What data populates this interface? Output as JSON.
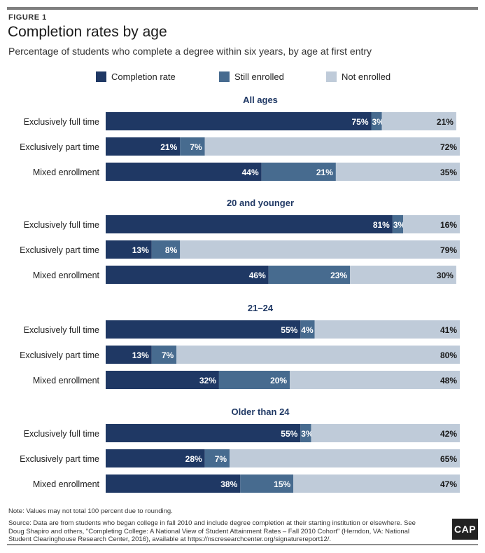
{
  "figure_label": "FIGURE 1",
  "colors": {
    "completion": "#1f3864",
    "still_enrolled": "#476b8f",
    "not_enrolled": "#bfcbd9",
    "heading": "#1f3864"
  },
  "legend": [
    {
      "label": "Completion rate",
      "color": "#1f3864"
    },
    {
      "label": "Still enrolled",
      "color": "#476b8f"
    },
    {
      "label": "Not enrolled",
      "color": "#bfcbd9"
    }
  ],
  "chart_data": {
    "type": "bar",
    "orientation": "horizontal",
    "stacked": true,
    "title": "Completion rates by age",
    "subtitle": "Percentage of students who complete a degree within six years, by age at first entry",
    "series_names": [
      "Completion rate",
      "Still enrolled",
      "Not enrolled"
    ],
    "groups": [
      {
        "title": "All ages",
        "rows": [
          {
            "label": "Exclusively full time",
            "values": [
              75,
              3,
              21
            ]
          },
          {
            "label": "Exclusively part time",
            "values": [
              21,
              7,
              72
            ]
          },
          {
            "label": "Mixed enrollment",
            "values": [
              44,
              21,
              35
            ]
          }
        ]
      },
      {
        "title": "20 and younger",
        "rows": [
          {
            "label": "Exclusively full time",
            "values": [
              81,
              3,
              16
            ]
          },
          {
            "label": "Exclusively part time",
            "values": [
              13,
              8,
              79
            ]
          },
          {
            "label": "Mixed enrollment",
            "values": [
              46,
              23,
              30
            ]
          }
        ]
      },
      {
        "title": "21–24",
        "rows": [
          {
            "label": "Exclusively full time",
            "values": [
              55,
              4,
              41
            ]
          },
          {
            "label": "Exclusively part time",
            "values": [
              13,
              7,
              80
            ]
          },
          {
            "label": "Mixed enrollment",
            "values": [
              32,
              20,
              48
            ]
          }
        ]
      },
      {
        "title": "Older than 24",
        "rows": [
          {
            "label": "Exclusively full time",
            "values": [
              55,
              3,
              42
            ]
          },
          {
            "label": "Exclusively part time",
            "values": [
              28,
              7,
              65
            ]
          },
          {
            "label": "Mixed enrollment",
            "values": [
              38,
              15,
              47
            ]
          }
        ]
      }
    ]
  },
  "note": "Note: Values may not total 100 percent due to rounding.",
  "source": "Source: Data are from students who began college in fall 2010 and include degree completion at their starting institution or elsewhere. See Doug Shapiro and others, \"Completing College: A National View of Student Attainment Rates – Fall 2010 Cohort\" (Herndon, VA: National Student Clearinghouse Research Center, 2016), available at https://nscresearchcenter.org/signaturereport12/.",
  "logo_text": "CAP"
}
